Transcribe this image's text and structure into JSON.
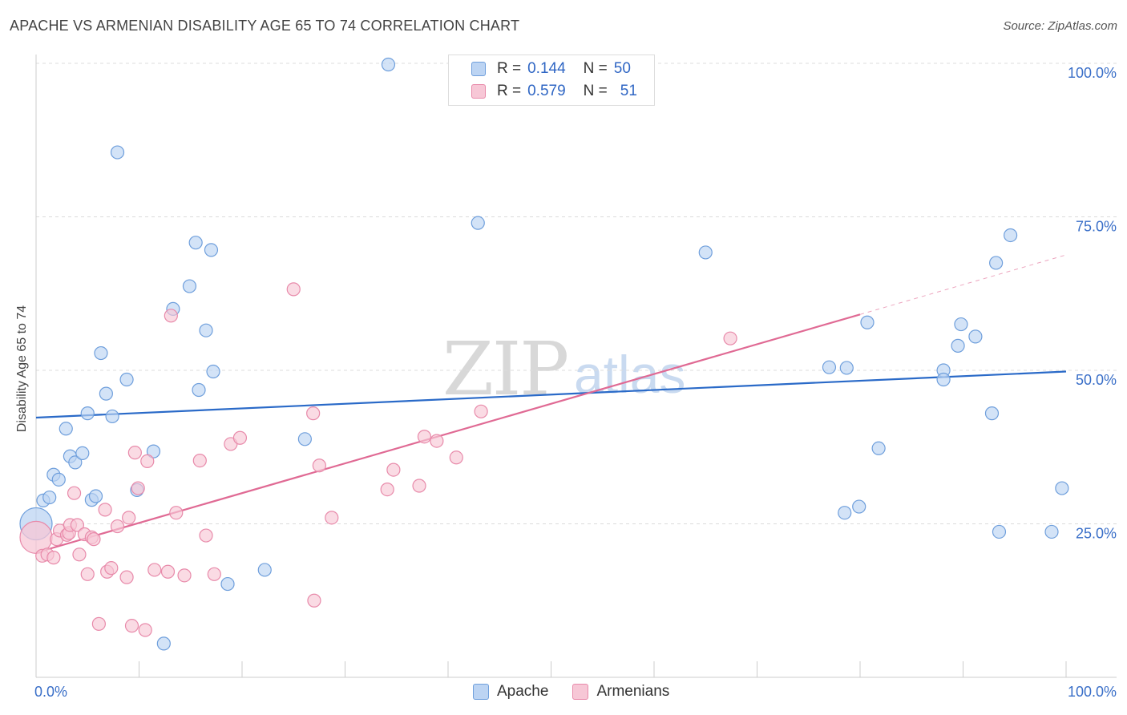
{
  "title": "APACHE VS ARMENIAN DISABILITY AGE 65 TO 74 CORRELATION CHART",
  "source": "Source: ZipAtlas.com",
  "watermark": {
    "zip": "ZIP",
    "atlas": "atlas"
  },
  "legend": {
    "rows": [
      {
        "r_label": "R =",
        "r_value": "0.144",
        "n_label": "N =",
        "n_value": "50"
      },
      {
        "r_label": "R =",
        "r_value": "0.579",
        "n_label": "N =",
        "n_value": "51"
      }
    ]
  },
  "colors": {
    "apache_fill": "#bcd4f3",
    "apache_stroke": "#6f9fdc",
    "apache_line": "#2a6ac8",
    "armenian_fill": "#f7c7d6",
    "armenian_stroke": "#e88aaa",
    "armenian_line": "#e06a94",
    "tick_text": "#3a6fc8",
    "grid": "#dcdcdc"
  },
  "chart_data": {
    "type": "scatter",
    "title": "APACHE VS ARMENIAN DISABILITY AGE 65 TO 74 CORRELATION CHART",
    "xlabel": "",
    "ylabel": "Disability Age 65 to 74",
    "xlim": [
      0,
      100
    ],
    "ylim": [
      0,
      100
    ],
    "x_tick_labels": [
      "0.0%",
      "100.0%"
    ],
    "y_tick_labels": [
      "25.0%",
      "50.0%",
      "75.0%",
      "100.0%"
    ],
    "y_ticks": [
      25,
      50,
      75,
      100
    ],
    "grid": true,
    "legend_position": "top-center",
    "series": [
      {
        "name": "Apache",
        "r": 0.144,
        "n": 50,
        "trend": {
          "x": [
            0,
            100
          ],
          "y": [
            42.3,
            49.8
          ],
          "solid_to": 100
        },
        "points": [
          {
            "x": 0.0,
            "y": 25.0,
            "big": true
          },
          {
            "x": 0.7,
            "y": 28.8
          },
          {
            "x": 1.3,
            "y": 29.3
          },
          {
            "x": 1.7,
            "y": 33.0
          },
          {
            "x": 2.2,
            "y": 32.2
          },
          {
            "x": 2.9,
            "y": 40.5
          },
          {
            "x": 3.3,
            "y": 36.0
          },
          {
            "x": 3.8,
            "y": 35.0
          },
          {
            "x": 4.5,
            "y": 36.5
          },
          {
            "x": 5.0,
            "y": 43.0
          },
          {
            "x": 5.4,
            "y": 28.9
          },
          {
            "x": 5.8,
            "y": 29.5
          },
          {
            "x": 6.3,
            "y": 52.8
          },
          {
            "x": 6.8,
            "y": 46.2
          },
          {
            "x": 7.4,
            "y": 42.5
          },
          {
            "x": 7.9,
            "y": 85.5
          },
          {
            "x": 8.8,
            "y": 48.5
          },
          {
            "x": 9.8,
            "y": 30.5
          },
          {
            "x": 11.4,
            "y": 36.8
          },
          {
            "x": 12.4,
            "y": 5.5
          },
          {
            "x": 13.3,
            "y": 60.0
          },
          {
            "x": 14.9,
            "y": 63.7
          },
          {
            "x": 15.5,
            "y": 70.8
          },
          {
            "x": 15.8,
            "y": 46.8
          },
          {
            "x": 16.5,
            "y": 56.5
          },
          {
            "x": 17.0,
            "y": 69.6
          },
          {
            "x": 17.2,
            "y": 49.8
          },
          {
            "x": 18.6,
            "y": 15.2
          },
          {
            "x": 22.2,
            "y": 17.5
          },
          {
            "x": 26.1,
            "y": 38.8
          },
          {
            "x": 34.2,
            "y": 99.8
          },
          {
            "x": 42.9,
            "y": 74.0
          },
          {
            "x": 65.0,
            "y": 69.2
          },
          {
            "x": 77.0,
            "y": 50.5
          },
          {
            "x": 78.7,
            "y": 50.4
          },
          {
            "x": 78.5,
            "y": 26.8
          },
          {
            "x": 79.9,
            "y": 27.8
          },
          {
            "x": 80.7,
            "y": 57.8
          },
          {
            "x": 81.8,
            "y": 37.3
          },
          {
            "x": 88.1,
            "y": 50.0
          },
          {
            "x": 88.1,
            "y": 48.5
          },
          {
            "x": 89.5,
            "y": 54.0
          },
          {
            "x": 89.8,
            "y": 57.5
          },
          {
            "x": 91.2,
            "y": 55.5
          },
          {
            "x": 92.8,
            "y": 43.0
          },
          {
            "x": 93.2,
            "y": 67.5
          },
          {
            "x": 93.5,
            "y": 23.7
          },
          {
            "x": 94.6,
            "y": 72.0
          },
          {
            "x": 98.6,
            "y": 23.7
          },
          {
            "x": 99.6,
            "y": 30.8
          }
        ]
      },
      {
        "name": "Armenians",
        "r": 0.579,
        "n": 51,
        "trend": {
          "x": [
            0,
            100
          ],
          "y": [
            20.3,
            68.8
          ],
          "solid_to": 80
        },
        "points": [
          {
            "x": 0.0,
            "y": 22.8,
            "big": true
          },
          {
            "x": 0.6,
            "y": 19.8
          },
          {
            "x": 1.1,
            "y": 20.0
          },
          {
            "x": 1.7,
            "y": 19.5
          },
          {
            "x": 2.0,
            "y": 22.5
          },
          {
            "x": 2.3,
            "y": 23.9
          },
          {
            "x": 3.0,
            "y": 23.2
          },
          {
            "x": 3.2,
            "y": 23.5
          },
          {
            "x": 3.3,
            "y": 24.8
          },
          {
            "x": 3.7,
            "y": 30.0
          },
          {
            "x": 4.0,
            "y": 24.8
          },
          {
            "x": 4.2,
            "y": 20.0
          },
          {
            "x": 4.7,
            "y": 23.3
          },
          {
            "x": 5.0,
            "y": 16.8
          },
          {
            "x": 5.4,
            "y": 22.8
          },
          {
            "x": 5.6,
            "y": 22.5
          },
          {
            "x": 6.1,
            "y": 8.7
          },
          {
            "x": 6.7,
            "y": 27.3
          },
          {
            "x": 6.9,
            "y": 17.2
          },
          {
            "x": 7.3,
            "y": 17.8
          },
          {
            "x": 7.9,
            "y": 24.6
          },
          {
            "x": 8.8,
            "y": 16.3
          },
          {
            "x": 9.0,
            "y": 26.0
          },
          {
            "x": 9.3,
            "y": 8.4
          },
          {
            "x": 9.6,
            "y": 36.6
          },
          {
            "x": 9.9,
            "y": 30.8
          },
          {
            "x": 10.6,
            "y": 7.7
          },
          {
            "x": 10.8,
            "y": 35.2
          },
          {
            "x": 11.5,
            "y": 17.5
          },
          {
            "x": 12.8,
            "y": 17.2
          },
          {
            "x": 13.1,
            "y": 58.9
          },
          {
            "x": 13.6,
            "y": 26.8
          },
          {
            "x": 14.4,
            "y": 16.6
          },
          {
            "x": 15.9,
            "y": 35.3
          },
          {
            "x": 16.5,
            "y": 23.1
          },
          {
            "x": 17.3,
            "y": 16.8
          },
          {
            "x": 18.9,
            "y": 38.0
          },
          {
            "x": 19.8,
            "y": 39.0
          },
          {
            "x": 25.0,
            "y": 63.2
          },
          {
            "x": 26.9,
            "y": 43.0
          },
          {
            "x": 27.0,
            "y": 12.5
          },
          {
            "x": 27.5,
            "y": 34.5
          },
          {
            "x": 28.7,
            "y": 26.0
          },
          {
            "x": 34.1,
            "y": 30.6
          },
          {
            "x": 34.7,
            "y": 33.8
          },
          {
            "x": 37.2,
            "y": 31.2
          },
          {
            "x": 37.7,
            "y": 39.2
          },
          {
            "x": 38.9,
            "y": 38.5
          },
          {
            "x": 40.8,
            "y": 35.8
          },
          {
            "x": 43.2,
            "y": 43.3
          },
          {
            "x": 67.4,
            "y": 55.2
          }
        ]
      }
    ]
  },
  "bottom_legend": [
    {
      "label": "Apache"
    },
    {
      "label": "Armenians"
    }
  ]
}
